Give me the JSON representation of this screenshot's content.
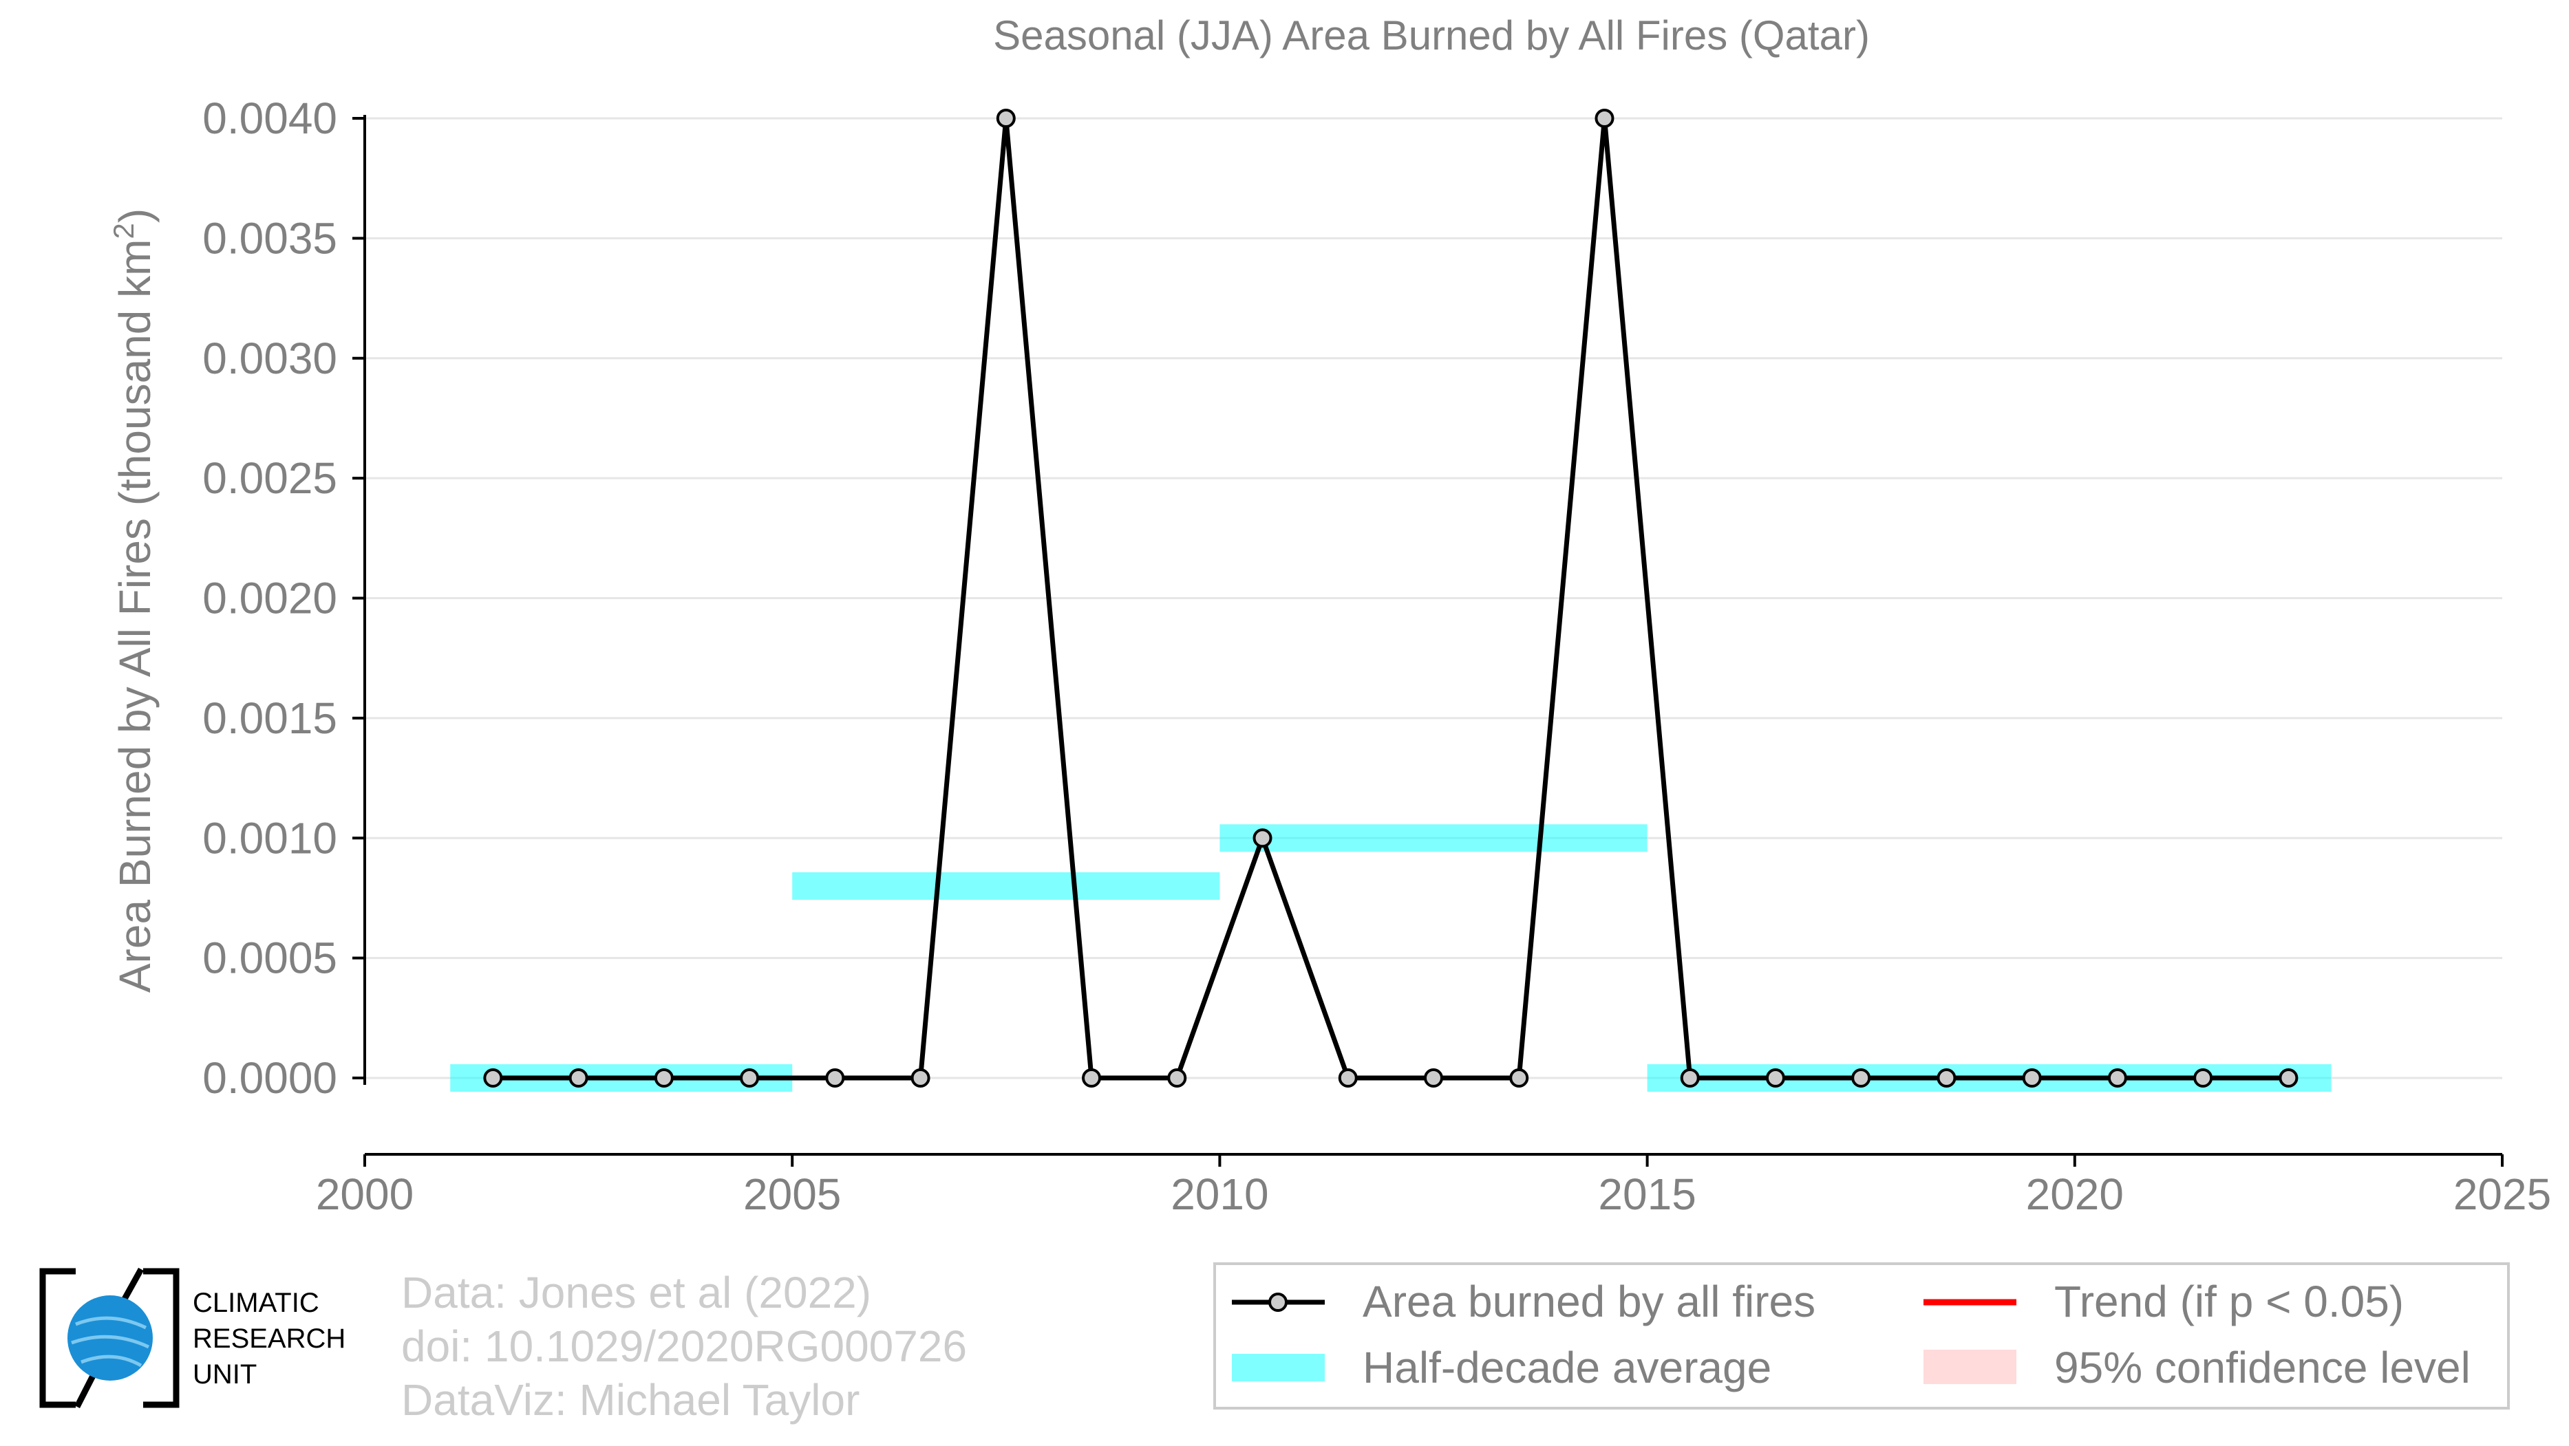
{
  "chart_data": {
    "type": "line",
    "title": "Seasonal (JJA) Area Burned by All Fires (Qatar)",
    "xlabel": "",
    "ylabel": "Area Burned by All Fires (thousand km",
    "ylabel_sup": "2",
    "ylabel_end": ")",
    "xlim": [
      2000,
      2025
    ],
    "ylim": [
      -0.00032,
      0.004
    ],
    "x_ticks": [
      2000,
      2005,
      2010,
      2015,
      2020,
      2025
    ],
    "x_tick_labels": [
      "2000",
      "2005",
      "2010",
      "2015",
      "2020",
      "2025"
    ],
    "y_ticks": [
      0.0,
      0.0005,
      0.001,
      0.0015,
      0.002,
      0.0025,
      0.003,
      0.0035,
      0.004
    ],
    "y_tick_labels": [
      "0.0000",
      "0.0005",
      "0.0010",
      "0.0015",
      "0.0020",
      "0.0025",
      "0.0030",
      "0.0035",
      "0.0040"
    ],
    "grid": "horizontal",
    "series": [
      {
        "name": "Area burned by all fires",
        "color": "#000000",
        "marker_fill": "#cccccc",
        "x": [
          2001.5,
          2002.5,
          2003.5,
          2004.5,
          2005.5,
          2006.5,
          2007.5,
          2008.5,
          2009.5,
          2010.5,
          2011.5,
          2012.5,
          2013.5,
          2014.5,
          2015.5,
          2016.5,
          2017.5,
          2018.5,
          2019.5,
          2020.5,
          2021.5,
          2022.5
        ],
        "y": [
          0,
          0,
          0,
          0,
          0,
          0,
          0.004,
          0,
          0,
          0.001,
          0,
          0,
          0,
          0.004,
          0,
          0,
          0,
          0,
          0,
          0,
          0,
          0
        ]
      }
    ],
    "half_decade_average": {
      "name": "Half-decade average",
      "color": "#00ffff",
      "segments": [
        {
          "x_start": 2001,
          "x_end": 2005,
          "y": 0.0
        },
        {
          "x_start": 2005,
          "x_end": 2010,
          "y": 0.0008
        },
        {
          "x_start": 2010,
          "x_end": 2015,
          "y": 0.001
        },
        {
          "x_start": 2015,
          "x_end": 2023,
          "y": 0.0
        }
      ]
    },
    "legend": {
      "placement": "bottom-right",
      "items": [
        {
          "label": "Area burned by all fires",
          "kind": "line-marker",
          "color": "#000000"
        },
        {
          "label": "Trend (if p < 0.05)",
          "kind": "line",
          "color": "#ff0000"
        },
        {
          "label": "Half-decade average",
          "kind": "band",
          "color": "#00ffff"
        },
        {
          "label": "95% confidence level",
          "kind": "band",
          "color": "#ffcccc"
        }
      ]
    }
  },
  "credits": [
    "Data: Jones et al (2022)",
    "doi: 10.1029/2020RG000726",
    "DataViz: Michael Taylor"
  ],
  "logo": {
    "lines": [
      "CLIMATIC",
      "RESEARCH",
      "UNIT"
    ],
    "globe_color": "#1a8fd6"
  },
  "colors": {
    "axis_text": "#808080",
    "grid": "#e6e6e6",
    "credits": "#cccccc"
  }
}
